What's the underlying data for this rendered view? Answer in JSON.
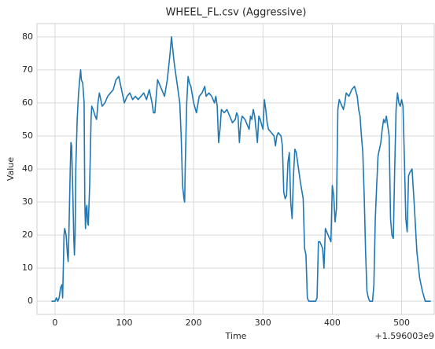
{
  "chart_data": {
    "type": "line",
    "title": "WHEEL_FL.csv (Aggressive)",
    "xlabel": "Time",
    "ylabel": "Value",
    "x_offset_label": "+1.596003e9",
    "x": [
      -5,
      0,
      2,
      4,
      6,
      8,
      10,
      11,
      12,
      13,
      14,
      16,
      18,
      19,
      20,
      22,
      23,
      24,
      26,
      27,
      28,
      29,
      30,
      32,
      34,
      36,
      37,
      38,
      40,
      42,
      43,
      44,
      45,
      46,
      47,
      48,
      50,
      52,
      53,
      55,
      58,
      60,
      62,
      64,
      66,
      68,
      72,
      76,
      80,
      84,
      88,
      92,
      96,
      100,
      104,
      108,
      112,
      116,
      120,
      124,
      128,
      132,
      136,
      140,
      142,
      144,
      146,
      148,
      150,
      154,
      158,
      162,
      166,
      168,
      170,
      172,
      176,
      180,
      182,
      184,
      186,
      187,
      188,
      190,
      192,
      194,
      196,
      200,
      204,
      208,
      212,
      216,
      218,
      222,
      226,
      230,
      232,
      234,
      236,
      238,
      240,
      244,
      248,
      252,
      256,
      260,
      262,
      264,
      266,
      268,
      270,
      274,
      278,
      280,
      282,
      284,
      286,
      288,
      292,
      294,
      296,
      300,
      302,
      304,
      306,
      308,
      312,
      316,
      318,
      320,
      322,
      326,
      328,
      330,
      332,
      334,
      336,
      338,
      340,
      342,
      344,
      346,
      348,
      350,
      354,
      358,
      360,
      362,
      364,
      366,
      370,
      376,
      378,
      380,
      382,
      386,
      388,
      390,
      392,
      396,
      398,
      400,
      402,
      404,
      406,
      408,
      410,
      412,
      416,
      418,
      420,
      424,
      428,
      432,
      436,
      438,
      440,
      442,
      444,
      446,
      448,
      450,
      452,
      454,
      458,
      460,
      462,
      464,
      466,
      468,
      470,
      472,
      474,
      476,
      478,
      480,
      482,
      484,
      486,
      488,
      490,
      492,
      494,
      496,
      498,
      500,
      502,
      504,
      506,
      508,
      510,
      512,
      515,
      518,
      522,
      526,
      530,
      534,
      542
    ],
    "series": [
      {
        "name": "WHEEL_FL",
        "color": "#1f77b4",
        "values": [
          0,
          0,
          1,
          0,
          1,
          4,
          5,
          1,
          10,
          20,
          22,
          20,
          14,
          12,
          20,
          40,
          48,
          47,
          30,
          20,
          14,
          20,
          40,
          55,
          63,
          68,
          70,
          67,
          66,
          60,
          30,
          22,
          28,
          29,
          24,
          23,
          35,
          55,
          59,
          58,
          56,
          55,
          60,
          63,
          61,
          59,
          60,
          62,
          63,
          64,
          67,
          68,
          64,
          60,
          62,
          63,
          61,
          62,
          61,
          62,
          63,
          61,
          64,
          60,
          57,
          57,
          62,
          67,
          66,
          64,
          62,
          67,
          75,
          80,
          76,
          72,
          66,
          60,
          50,
          35,
          31,
          30,
          42,
          60,
          68,
          66,
          65,
          60,
          57,
          62,
          63,
          65,
          62,
          63,
          62,
          60,
          62,
          59,
          48,
          52,
          58,
          57,
          58,
          56,
          54,
          55,
          57,
          56,
          48,
          54,
          56,
          55,
          53,
          52,
          56,
          55,
          58,
          56,
          48,
          56,
          55,
          52,
          61,
          58,
          54,
          52,
          51,
          50,
          47,
          50,
          51,
          50,
          47,
          33,
          31,
          32,
          42,
          45,
          30,
          25,
          38,
          46,
          45,
          42,
          36,
          31,
          16,
          14,
          1,
          0,
          0,
          0,
          1,
          18,
          18,
          16,
          10,
          22,
          21,
          19,
          18,
          35,
          32,
          24,
          28,
          58,
          61,
          60,
          58,
          60,
          63,
          62,
          64,
          65,
          62,
          58,
          56,
          50,
          45,
          32,
          15,
          3,
          1,
          0,
          0,
          5,
          25,
          35,
          44,
          46,
          48,
          52,
          55,
          54,
          56,
          53,
          50,
          25,
          20,
          19,
          40,
          58,
          63,
          60,
          59,
          61,
          59,
          43,
          25,
          21,
          38,
          39,
          40,
          30,
          15,
          7,
          3,
          0,
          0
        ]
      }
    ],
    "xlim": [
      -26,
      547
    ],
    "ylim": [
      -4,
      84
    ],
    "xticks": [
      0,
      100,
      200,
      300,
      400,
      500
    ],
    "yticks": [
      0,
      10,
      20,
      30,
      40,
      50,
      60,
      70,
      80
    ],
    "grid": true
  }
}
